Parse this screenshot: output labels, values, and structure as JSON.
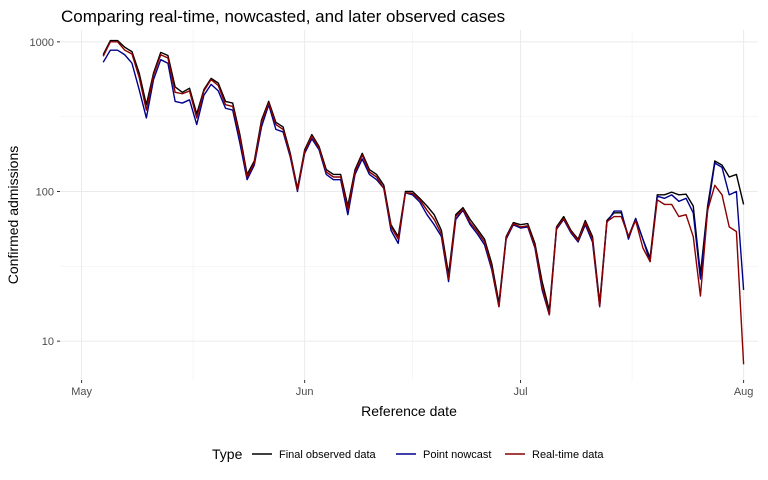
{
  "chart_data": {
    "type": "line",
    "title": "Comparing real-time, nowcasted, and later observed cases",
    "xlabel": "Reference date",
    "ylabel": "Confirmed admissions",
    "y_scale": "log10",
    "ylim": [
      5.5,
      1200
    ],
    "xlim": [
      "2021-04-28",
      "2021-08-03"
    ],
    "x_ticks": [
      {
        "date": "2021-05-01",
        "label": "May"
      },
      {
        "date": "2021-06-01",
        "label": "Jun"
      },
      {
        "date": "2021-07-01",
        "label": "Jul"
      },
      {
        "date": "2021-08-01",
        "label": "Aug"
      }
    ],
    "y_ticks": [
      {
        "value": 10,
        "label": "10"
      },
      {
        "value": 100,
        "label": "100"
      },
      {
        "value": 1000,
        "label": "1000"
      }
    ],
    "grid": true,
    "legend": {
      "title": "Type",
      "position": "bottom",
      "entries": [
        {
          "label": "Final observed data",
          "color": "#000000"
        },
        {
          "label": "Point nowcast",
          "color": "#00008B"
        },
        {
          "label": "Real-time data",
          "color": "#8B0000"
        }
      ]
    },
    "series": [
      {
        "name": "Final observed data",
        "color": "#000000",
        "x_start": "2021-05-04",
        "values": [
          820,
          1020,
          1020,
          920,
          860,
          620,
          380,
          620,
          850,
          810,
          500,
          460,
          490,
          330,
          480,
          570,
          530,
          400,
          390,
          240,
          130,
          160,
          300,
          400,
          290,
          270,
          180,
          105,
          190,
          240,
          200,
          140,
          130,
          130,
          80,
          140,
          180,
          140,
          130,
          110,
          60,
          50,
          100,
          100,
          90,
          80,
          70,
          55,
          28,
          70,
          78,
          65,
          56,
          48,
          33,
          18,
          50,
          62,
          60,
          61,
          45,
          25,
          16,
          58,
          68,
          55,
          48,
          64,
          50,
          18,
          64,
          72,
          72,
          50,
          66,
          48,
          36,
          95,
          95,
          99,
          95,
          96,
          80,
          28,
          80,
          160,
          150,
          125,
          130,
          82
        ],
        "y_scale": "log10"
      },
      {
        "name": "Point nowcast",
        "color": "#00008B",
        "x_start": "2021-05-04",
        "values": [
          730,
          880,
          880,
          820,
          720,
          480,
          310,
          560,
          760,
          720,
          400,
          390,
          410,
          280,
          440,
          520,
          470,
          360,
          350,
          210,
          120,
          150,
          270,
          380,
          260,
          250,
          170,
          100,
          180,
          225,
          190,
          130,
          120,
          120,
          70,
          130,
          165,
          130,
          120,
          105,
          55,
          45,
          98,
          95,
          85,
          70,
          60,
          50,
          25,
          65,
          75,
          60,
          52,
          44,
          30,
          17,
          48,
          60,
          57,
          58,
          42,
          22,
          15,
          56,
          65,
          53,
          46,
          60,
          46,
          17,
          62,
          74,
          74,
          48,
          66,
          48,
          34,
          93,
          90,
          95,
          86,
          90,
          72,
          26,
          75,
          155,
          145,
          95,
          100,
          22
        ],
        "y_scale": "log10"
      },
      {
        "name": "Real-time data",
        "color": "#8B0000",
        "x_start": "2021-05-04",
        "values": [
          800,
          1000,
          1000,
          880,
          830,
          580,
          350,
          600,
          820,
          780,
          460,
          450,
          470,
          310,
          470,
          560,
          510,
          380,
          370,
          230,
          125,
          155,
          290,
          390,
          280,
          260,
          175,
          102,
          185,
          235,
          195,
          135,
          125,
          125,
          75,
          135,
          175,
          135,
          125,
          105,
          58,
          48,
          98,
          97,
          88,
          75,
          65,
          52,
          26,
          68,
          76,
          62,
          54,
          46,
          31,
          17,
          49,
          61,
          58,
          59,
          43,
          23,
          15,
          57,
          66,
          54,
          47,
          62,
          48,
          17,
          63,
          68,
          68,
          50,
          64,
          42,
          34,
          88,
          82,
          82,
          68,
          70,
          50,
          20,
          75,
          110,
          95,
          58,
          54,
          7
        ],
        "y_scale": "log10"
      }
    ]
  }
}
